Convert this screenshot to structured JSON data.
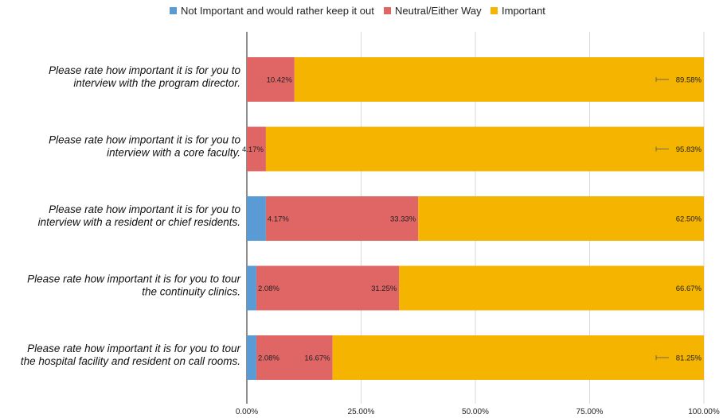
{
  "chart_data": {
    "type": "bar",
    "orientation": "horizontal",
    "stacked": true,
    "categories": [
      [
        "Please rate how important it is for you to",
        "interview with the program director."
      ],
      [
        "Please rate how important it is for you to",
        "interview with a core faculty."
      ],
      [
        "Please rate how important it is for you to",
        "interview with a resident or chief residents."
      ],
      [
        "Please rate how important it is for you to tour",
        "the continuity clinics."
      ],
      [
        "Please rate how important it is for you to tour",
        "the hospital facility and resident on call rooms."
      ]
    ],
    "series": [
      {
        "name": "Not Important and would rather keep it out",
        "color": "#5b9bd5",
        "values": [
          0,
          0,
          4.17,
          2.08,
          2.08
        ],
        "labels": [
          "",
          "",
          "",
          "",
          ""
        ]
      },
      {
        "name": "Neutral/Either Way",
        "color": "#e06666",
        "values": [
          10.42,
          4.17,
          33.33,
          31.25,
          16.67
        ],
        "labels": [
          "10.42%",
          "4.17%",
          "33.33%",
          "31.25%",
          "16.67%"
        ]
      },
      {
        "name": "Important",
        "color": "#f4b400",
        "values": [
          89.58,
          95.83,
          62.5,
          66.67,
          81.25
        ],
        "labels": [
          "89.58%",
          "95.83%",
          "62.50%",
          "66.67%",
          "81.25%"
        ]
      }
    ],
    "extra_labels": [
      {
        "row": 2,
        "text": "4.17%"
      },
      {
        "row": 3,
        "text": "2.08%"
      },
      {
        "row": 4,
        "text": "2.08%"
      }
    ],
    "xlim": [
      0,
      100
    ],
    "x_ticks": [
      "0.00%",
      "25.00%",
      "50.00%",
      "75.00%",
      "100.00%"
    ],
    "grid": true,
    "legend_position": "top"
  }
}
